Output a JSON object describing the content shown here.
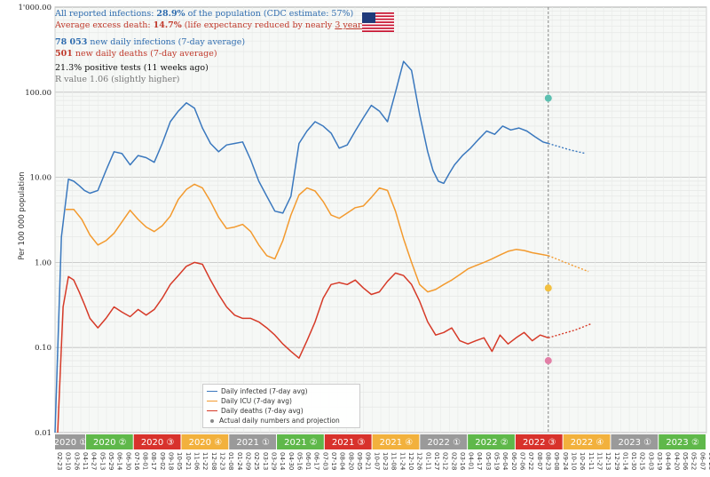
{
  "header": {
    "line1_prefix": "All reported infections: ",
    "line1_value": "28.9%",
    "line1_suffix": " of the population (CDC estimate: 57%)",
    "line2_prefix": "Average excess death: ",
    "line2_value": "14.7%",
    "line2_suffix": " (life expectancy reduced by nearly ",
    "line2_years": "3 years",
    "line2_end": ")",
    "infections_value": "78 053",
    "infections_label": " new daily infections (7-day average)",
    "deaths_value": "501",
    "deaths_label": " new daily deaths (7-day average)",
    "positive_tests": "21.3% positive tests (11 weeks ago)",
    "r_value": "R value 1.06 (slightly higher)"
  },
  "colors": {
    "infected": "#3a78be",
    "icu": "#f39a2e",
    "deaths": "#d63a28",
    "header_blue": "#2f6db0",
    "header_red": "#c0392b"
  },
  "legend": {
    "infected": "Daily infected (7-day avg)",
    "icu": "Daily ICU (7-day avg)",
    "deaths": "Daily deaths (7-day avg)",
    "actual": "Actual daily numbers and projection"
  },
  "chart_data": {
    "type": "line",
    "ylabel": "Per 100 000 population",
    "yscale": "log",
    "ylim": [
      0.01,
      1000
    ],
    "yticks": [
      "0.01",
      "0.10",
      "1.00",
      "10.00",
      "100.00",
      "1'000.00"
    ],
    "xlim": [
      0,
      1215
    ],
    "grid": true,
    "legend_position": "bottom-left",
    "quarters": [
      {
        "label": "2020 ①",
        "color": "#9a9a9a"
      },
      {
        "label": "2020 ②",
        "color": "#5fb84a"
      },
      {
        "label": "2020 ③",
        "color": "#d8322c"
      },
      {
        "label": "2020 ④",
        "color": "#f2b13d"
      },
      {
        "label": "2021 ①",
        "color": "#9a9a9a"
      },
      {
        "label": "2021 ②",
        "color": "#5fb84a"
      },
      {
        "label": "2021 ③",
        "color": "#d8322c"
      },
      {
        "label": "2021 ④",
        "color": "#f2b13d"
      },
      {
        "label": "2022 ①",
        "color": "#9a9a9a"
      },
      {
        "label": "2022 ②",
        "color": "#5fb84a"
      },
      {
        "label": "2022 ③",
        "color": "#d8322c"
      },
      {
        "label": "2022 ④",
        "color": "#f2b13d"
      },
      {
        "label": "2023 ①",
        "color": "#9a9a9a"
      },
      {
        "label": "2023 ②",
        "color": "#5fb84a"
      }
    ],
    "date_ticks": [
      "02-23",
      "03-10",
      "03-26",
      "04-11",
      "04-27",
      "05-13",
      "05-29",
      "06-14",
      "06-30",
      "07-16",
      "08-01",
      "08-17",
      "09-02",
      "09-18",
      "10-05",
      "10-21",
      "11-06",
      "11-22",
      "12-08",
      "12-23",
      "01-08",
      "01-24",
      "02-09",
      "02-25",
      "03-13",
      "03-29",
      "04-14",
      "04-30",
      "05-16",
      "06-01",
      "06-17",
      "07-03",
      "07-19",
      "08-04",
      "08-20",
      "09-05",
      "09-21",
      "10-07",
      "10-23",
      "11-08",
      "11-24",
      "12-10",
      "12-26",
      "01-11",
      "01-27",
      "02-12",
      "02-28",
      "03-16",
      "04-01",
      "04-17",
      "05-03",
      "05-19",
      "06-04",
      "06-20",
      "07-06",
      "07-22",
      "08-07",
      "08-23",
      "09-08",
      "09-24",
      "10-10",
      "10-26",
      "11-11",
      "11-27",
      "12-13",
      "12-29",
      "01-14",
      "01-30",
      "02-15",
      "03-03",
      "03-19",
      "04-04",
      "04-20",
      "05-06",
      "05-22",
      "06-07",
      "06-23"
    ],
    "current_day": 920,
    "series": [
      {
        "name": "Daily infected (7-day avg)",
        "x": [
          0,
          12,
          25,
          35,
          45,
          55,
          65,
          80,
          95,
          110,
          125,
          140,
          155,
          170,
          185,
          200,
          215,
          230,
          245,
          260,
          275,
          290,
          305,
          320,
          335,
          350,
          365,
          380,
          395,
          410,
          425,
          440,
          455,
          470,
          485,
          500,
          515,
          530,
          545,
          560,
          575,
          590,
          605,
          620,
          635,
          650,
          665,
          680,
          695,
          705,
          715,
          725,
          735,
          745,
          760,
          775,
          790,
          805,
          820,
          835,
          850,
          865,
          880,
          895,
          910,
          920
        ],
        "y": [
          0.01,
          2,
          9.5,
          9,
          8,
          7,
          6.5,
          7,
          12,
          20,
          19,
          14,
          18,
          17,
          15,
          25,
          45,
          60,
          75,
          65,
          38,
          25,
          20,
          24,
          25,
          26,
          16,
          9,
          6,
          4,
          3.8,
          6,
          25,
          35,
          45,
          40,
          33,
          22,
          24,
          35,
          50,
          70,
          60,
          45,
          100,
          230,
          180,
          55,
          20,
          12,
          9,
          8.5,
          11,
          14,
          18,
          22,
          28,
          35,
          32,
          40,
          36,
          38,
          35,
          30,
          26,
          25
        ]
      },
      {
        "name": "Daily ICU (7-day avg)",
        "x": [
          20,
          35,
          50,
          65,
          80,
          95,
          110,
          125,
          140,
          155,
          170,
          185,
          200,
          215,
          230,
          245,
          260,
          275,
          290,
          305,
          320,
          335,
          350,
          365,
          380,
          395,
          410,
          425,
          440,
          455,
          470,
          485,
          500,
          515,
          530,
          545,
          560,
          575,
          590,
          605,
          620,
          635,
          650,
          665,
          680,
          695,
          710,
          725,
          740,
          755,
          770,
          785,
          800,
          815,
          830,
          845,
          860,
          875,
          890,
          905,
          920
        ],
        "y": [
          4.2,
          4.2,
          3.2,
          2.1,
          1.6,
          1.8,
          2.2,
          3.0,
          4.1,
          3.2,
          2.6,
          2.3,
          2.7,
          3.5,
          5.5,
          7.2,
          8.3,
          7.5,
          5.2,
          3.4,
          2.5,
          2.6,
          2.8,
          2.3,
          1.6,
          1.2,
          1.1,
          1.8,
          3.6,
          6.2,
          7.5,
          6.9,
          5.2,
          3.6,
          3.3,
          3.8,
          4.4,
          4.6,
          5.8,
          7.5,
          7,
          4,
          1.9,
          1.0,
          0.55,
          0.45,
          0.48,
          0.55,
          0.62,
          0.72,
          0.84,
          0.92,
          1.0,
          1.1,
          1.22,
          1.35,
          1.42,
          1.38,
          1.3,
          1.25,
          1.2
        ]
      },
      {
        "name": "Daily deaths (7-day avg)",
        "x": [
          5,
          15,
          25,
          35,
          45,
          55,
          65,
          80,
          95,
          110,
          125,
          140,
          155,
          170,
          185,
          200,
          215,
          230,
          245,
          260,
          275,
          290,
          305,
          320,
          335,
          350,
          365,
          380,
          395,
          410,
          425,
          440,
          455,
          470,
          485,
          500,
          515,
          530,
          545,
          560,
          575,
          590,
          605,
          620,
          635,
          650,
          665,
          680,
          695,
          710,
          725,
          740,
          755,
          770,
          785,
          800,
          815,
          830,
          845,
          860,
          875,
          890,
          905,
          920
        ],
        "y": [
          0.01,
          0.3,
          0.68,
          0.62,
          0.45,
          0.32,
          0.22,
          0.17,
          0.22,
          0.3,
          0.26,
          0.23,
          0.28,
          0.24,
          0.28,
          0.38,
          0.55,
          0.7,
          0.9,
          1.0,
          0.95,
          0.62,
          0.42,
          0.3,
          0.24,
          0.22,
          0.22,
          0.2,
          0.17,
          0.14,
          0.11,
          0.09,
          0.075,
          0.12,
          0.2,
          0.38,
          0.55,
          0.58,
          0.55,
          0.62,
          0.5,
          0.42,
          0.45,
          0.6,
          0.75,
          0.7,
          0.55,
          0.35,
          0.2,
          0.14,
          0.15,
          0.17,
          0.12,
          0.11,
          0.12,
          0.13,
          0.09,
          0.14,
          0.11,
          0.13,
          0.15,
          0.12,
          0.14,
          0.13
        ]
      }
    ]
  }
}
